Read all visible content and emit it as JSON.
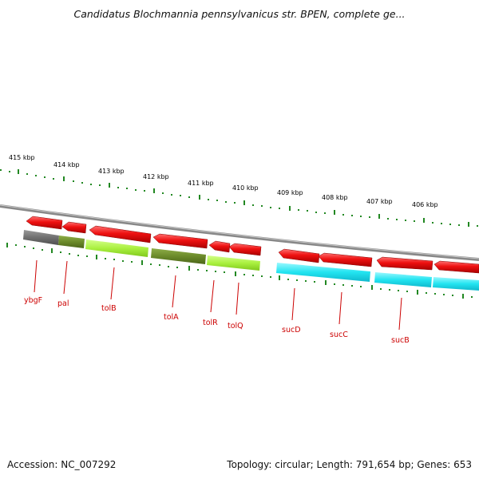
{
  "title": "Candidatus Blochmannia pennsylvanicus str. BPEN, complete ge...",
  "footer": {
    "accession": "Accession: NC_007292",
    "topology": "Topology: circular; Length: 791,654 bp; Genes: 653"
  },
  "kbp_labels": [
    "415 kbp",
    "414 kbp",
    "413 kbp",
    "412 kbp",
    "411 kbp",
    "410 kbp",
    "409 kbp",
    "408 kbp",
    "407 kbp",
    "406 kbp"
  ],
  "genes": [
    "ybgF",
    "pal",
    "tolB",
    "tolA",
    "tolR",
    "tolQ",
    "sucD",
    "sucC",
    "sucB"
  ],
  "colors": {
    "forward_arrow": "#ee1111",
    "backbone": "#888888",
    "tick": "#228822",
    "label": "#cc0000",
    "cog_gray": "#707070",
    "cog_olive": "#6b8a2a",
    "cog_lime": "#aaf040",
    "cog_cyan": "#22e4f0"
  }
}
